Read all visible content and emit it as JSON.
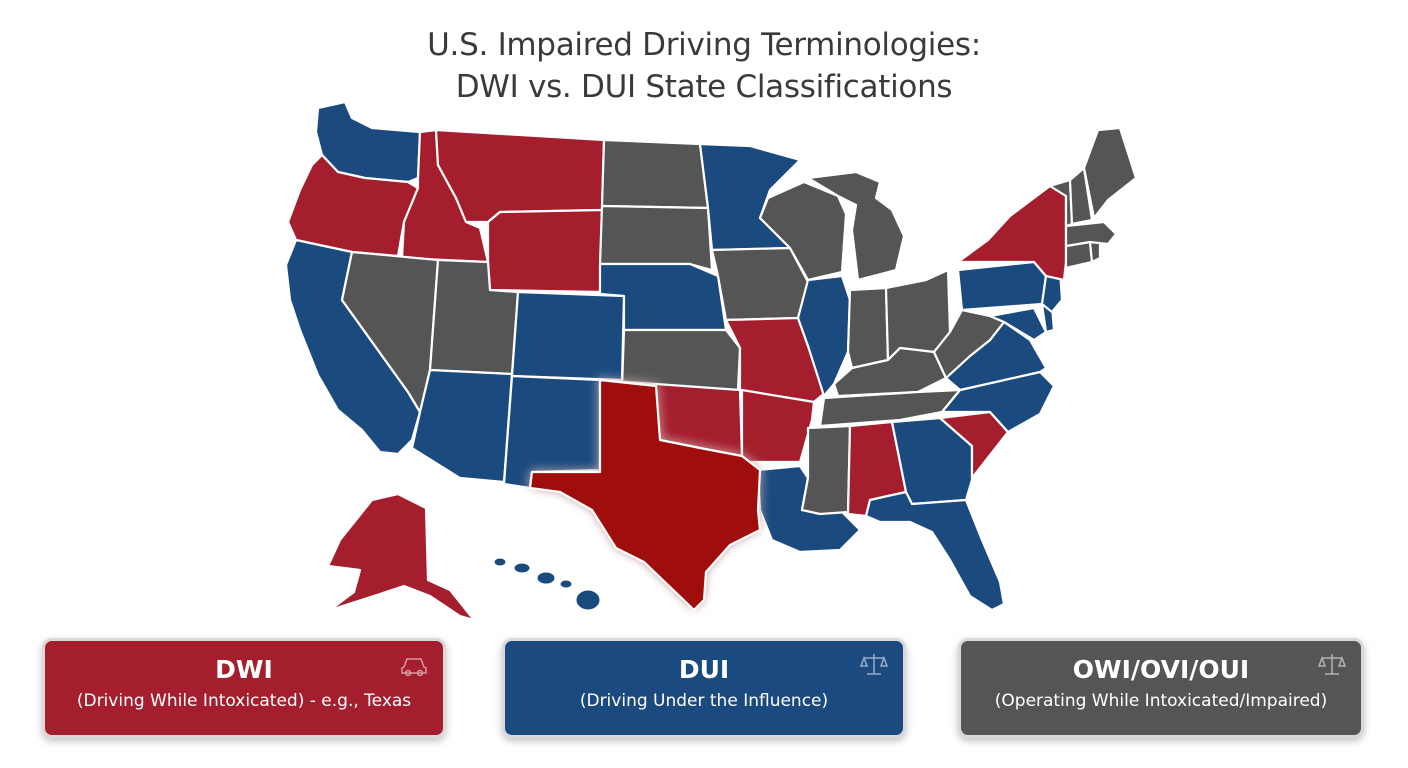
{
  "title": {
    "line1": "U.S. Impaired Driving Terminologies:",
    "line2": "DWI vs. DUI State Classifications"
  },
  "colors": {
    "dwi": "#a51e2d",
    "dui": "#1b4a7e",
    "owi": "#555555",
    "texas_highlight": "#a00d0d",
    "texas_glow": "#ff4a4a"
  },
  "legend": [
    {
      "key": "dwi",
      "heading": "DWI",
      "description": "(Driving While Intoxicated) - e.g., Texas",
      "icon": "car-icon"
    },
    {
      "key": "dui",
      "heading": "DUI",
      "description": "(Driving Under the Influence)",
      "icon": "scales-icon"
    },
    {
      "key": "owi",
      "heading": "OWI/OVI/OUI",
      "description": "(Operating While Intoxicated/Impaired)",
      "icon": "scales-icon"
    }
  ],
  "map": {
    "highlighted_state": "TX",
    "state_classes": {
      "WA": "dui",
      "OR": "dwi",
      "CA": "dui",
      "ID": "dwi",
      "NV": "owi",
      "MT": "dwi",
      "WY": "dwi",
      "UT": "owi",
      "AZ": "dui",
      "CO": "dui",
      "NM": "dui",
      "ND": "owi",
      "SD": "owi",
      "NE": "dui",
      "KS": "owi",
      "OK": "dwi",
      "TX": "dwi",
      "MN": "dui",
      "IA": "owi",
      "MO": "dwi",
      "AR": "dwi",
      "LA": "dui",
      "WI": "owi",
      "IL": "dui",
      "MI": "owi",
      "IN": "owi",
      "OH": "owi",
      "KY": "owi",
      "TN": "owi",
      "MS": "owi",
      "AL": "dwi",
      "GA": "dui",
      "FL": "dui",
      "SC": "dwi",
      "NC": "dui",
      "VA": "dui",
      "WV": "owi",
      "PA": "dui",
      "NY": "dwi",
      "NJ": "dui",
      "DE": "dui",
      "MD": "dui",
      "VT": "owi",
      "NH": "owi",
      "ME": "owi",
      "MA": "owi",
      "CT": "owi",
      "RI": "owi",
      "AK": "dwi",
      "HI": "dui"
    }
  }
}
